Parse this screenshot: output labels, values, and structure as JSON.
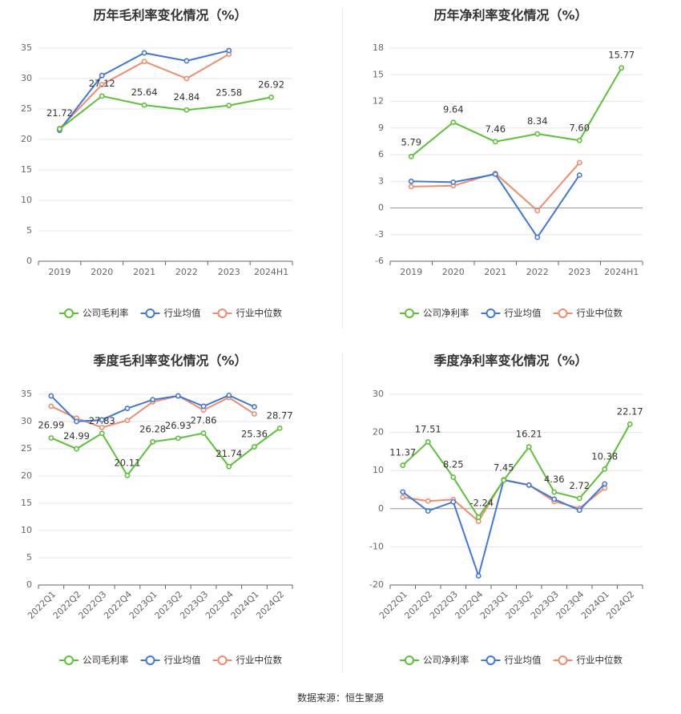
{
  "source_text": "数据来源：恒生聚源",
  "colors": {
    "company": "#5ac234",
    "avg": "#3f78dc",
    "median": "#f18b6b",
    "grid": "#e6e6e6",
    "axis": "#666666"
  },
  "chart_data": [
    {
      "type": "line",
      "title": "历年毛利率变化情况（%）",
      "categories": [
        "2019",
        "2020",
        "2021",
        "2022",
        "2023",
        "2024H1"
      ],
      "ylim": [
        0,
        35
      ],
      "yticks": [
        0,
        5,
        10,
        15,
        20,
        25,
        30,
        35
      ],
      "grid": true,
      "legend_position": "bottom",
      "series": [
        {
          "name": "公司毛利率",
          "values": [
            21.72,
            27.12,
            25.64,
            24.84,
            25.58,
            26.92
          ],
          "labels": [
            "21.72",
            "27.12",
            "25.64",
            "24.84",
            "25.58",
            "26.92"
          ]
        },
        {
          "name": "行业均值",
          "values": [
            21.5,
            30.5,
            34.2,
            32.9,
            34.6,
            null
          ]
        },
        {
          "name": "行业中位数",
          "values": [
            21.8,
            29.0,
            32.8,
            30.0,
            34.0,
            null
          ]
        }
      ]
    },
    {
      "type": "line",
      "title": "历年净利率变化情况（%）",
      "categories": [
        "2019",
        "2020",
        "2021",
        "2022",
        "2023",
        "2024H1"
      ],
      "ylim": [
        -6,
        18
      ],
      "yticks": [
        -6,
        -3,
        0,
        3,
        6,
        9,
        12,
        15,
        18
      ],
      "grid": true,
      "legend_position": "bottom",
      "series": [
        {
          "name": "公司净利率",
          "values": [
            5.79,
            9.64,
            7.46,
            8.34,
            7.6,
            15.77
          ],
          "labels": [
            "5.79",
            "9.64",
            "7.46",
            "8.34",
            "7.60",
            "15.77"
          ]
        },
        {
          "name": "行业均值",
          "values": [
            3.0,
            2.9,
            3.8,
            -3.3,
            3.7,
            null
          ]
        },
        {
          "name": "行业中位数",
          "values": [
            2.4,
            2.5,
            3.9,
            -0.3,
            5.1,
            null
          ]
        }
      ]
    },
    {
      "type": "line",
      "title": "季度毛利率变化情况（%）",
      "categories": [
        "2022Q1",
        "2022Q2",
        "2022Q3",
        "2022Q4",
        "2023Q1",
        "2023Q2",
        "2023Q3",
        "2023Q4",
        "2024Q1",
        "2024Q2"
      ],
      "ylim": [
        0,
        35
      ],
      "yticks": [
        0,
        5,
        10,
        15,
        20,
        25,
        30,
        35
      ],
      "grid": true,
      "legend_position": "bottom",
      "series": [
        {
          "name": "公司毛利率",
          "values": [
            26.99,
            24.99,
            27.83,
            20.11,
            26.28,
            26.93,
            27.86,
            21.74,
            25.36,
            28.77
          ],
          "labels": [
            "26.99",
            "24.99",
            "27.83",
            "20.11",
            "26.28",
            "26.93",
            "27.86",
            "21.74",
            "25.36",
            "28.77"
          ]
        },
        {
          "name": "行业均值",
          "values": [
            34.7,
            30.0,
            30.3,
            32.4,
            34.0,
            34.7,
            32.8,
            34.8,
            32.7,
            null
          ]
        },
        {
          "name": "行业中位数",
          "values": [
            32.8,
            30.6,
            28.9,
            30.2,
            33.6,
            34.7,
            32.1,
            34.4,
            31.4,
            null
          ]
        }
      ]
    },
    {
      "type": "line",
      "title": "季度净利率变化情况（%）",
      "categories": [
        "2022Q1",
        "2022Q2",
        "2022Q3",
        "2022Q4",
        "2023Q1",
        "2023Q2",
        "2023Q3",
        "2023Q4",
        "2024Q1",
        "2024Q2"
      ],
      "ylim": [
        -20,
        30
      ],
      "yticks": [
        -20,
        -10,
        0,
        10,
        20,
        30
      ],
      "grid": true,
      "legend_position": "bottom",
      "series": [
        {
          "name": "公司净利率",
          "values": [
            11.37,
            17.51,
            8.25,
            -2.24,
            7.45,
            16.21,
            4.36,
            2.72,
            10.38,
            22.17
          ],
          "labels": [
            "11.37",
            "17.51",
            "8.25",
            "-2.24",
            "7.45",
            "16.21",
            "4.36",
            "2.72",
            "10.38",
            "22.17"
          ]
        },
        {
          "name": "行业均值",
          "values": [
            4.4,
            -0.6,
            1.8,
            -17.6,
            7.5,
            6.2,
            2.5,
            -0.4,
            6.5,
            null
          ]
        },
        {
          "name": "行业中位数",
          "values": [
            3.0,
            2.0,
            2.4,
            -3.3,
            7.6,
            6.2,
            1.9,
            0.1,
            5.4,
            null
          ]
        }
      ]
    }
  ]
}
